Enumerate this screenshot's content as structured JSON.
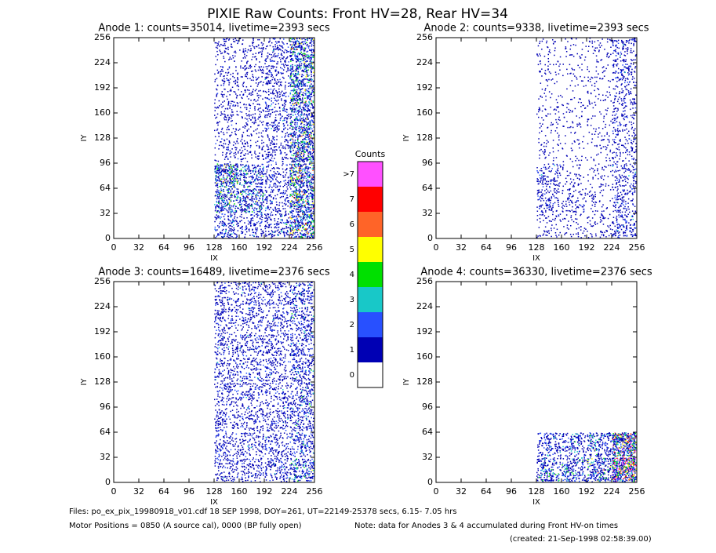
{
  "title": "PIXIE Raw Counts:  Front HV=28, Rear HV=34",
  "chart_data": [
    {
      "type": "heatmap",
      "title": "Anode 1: counts=35014, livetime=2393 secs",
      "x_label": "IX",
      "y_label": "IY",
      "xlim": [
        0,
        256
      ],
      "ylim": [
        0,
        256
      ],
      "xticks": [
        0,
        32,
        64,
        96,
        128,
        160,
        192,
        224,
        256
      ],
      "yticks": [
        0,
        32,
        64,
        96,
        128,
        160,
        192,
        224,
        256
      ],
      "xbins": [
        0,
        32,
        64,
        96,
        128,
        160,
        192,
        224,
        256
      ],
      "ybins": [
        0,
        32,
        64,
        96,
        128,
        160,
        192,
        224,
        256
      ],
      "values": [
        [
          0,
          0,
          0,
          0,
          2,
          1.5,
          2,
          4
        ],
        [
          0,
          0,
          0,
          0,
          3,
          3,
          1.5,
          4
        ],
        [
          0,
          0,
          0,
          0,
          4,
          2.5,
          1.5,
          4
        ],
        [
          0,
          0,
          0,
          0,
          1,
          1,
          1.5,
          4
        ],
        [
          0,
          0,
          0,
          0,
          1,
          1,
          1.5,
          3.5
        ],
        [
          0,
          0,
          0,
          0,
          1,
          1,
          1.5,
          3.5
        ],
        [
          0,
          0,
          0,
          0,
          1,
          1,
          1.5,
          3.5
        ],
        [
          0,
          0,
          0,
          0,
          1,
          1,
          1.5,
          3.5
        ]
      ]
    },
    {
      "type": "heatmap",
      "title": "Anode 2: counts=9338, livetime=2393 secs",
      "x_label": "IX",
      "y_label": "IY",
      "xlim": [
        0,
        256
      ],
      "ylim": [
        0,
        256
      ],
      "xticks": [
        0,
        32,
        64,
        96,
        128,
        160,
        192,
        224,
        256
      ],
      "yticks": [
        0,
        32,
        64,
        96,
        128,
        160,
        192,
        224,
        256
      ],
      "xbins": [
        0,
        32,
        64,
        96,
        128,
        160,
        192,
        224,
        256
      ],
      "ybins": [
        0,
        32,
        64,
        96,
        128,
        160,
        192,
        224,
        256
      ],
      "values": [
        [
          0,
          0,
          0,
          0,
          0.8,
          0.6,
          0.8,
          1.8
        ],
        [
          0,
          0,
          0,
          0,
          1.5,
          1.2,
          0.6,
          1.5
        ],
        [
          0,
          0,
          0,
          0,
          1.5,
          0.6,
          0.6,
          1.5
        ],
        [
          0,
          0,
          0,
          0,
          0.5,
          0.4,
          0.5,
          1.2
        ],
        [
          0,
          0,
          0,
          0,
          0.5,
          0.4,
          0.5,
          1.2
        ],
        [
          0,
          0,
          0,
          0,
          0.5,
          0.4,
          0.5,
          1.2
        ],
        [
          0,
          0,
          0,
          0,
          0.5,
          0.4,
          0.5,
          1.5
        ],
        [
          0,
          0,
          0,
          0,
          0.5,
          0.4,
          0.6,
          1.5
        ]
      ]
    },
    {
      "type": "heatmap",
      "title": "Anode 3: counts=16489, livetime=2376 secs",
      "x_label": "IX",
      "y_label": "IY",
      "xlim": [
        0,
        256
      ],
      "ylim": [
        0,
        256
      ],
      "xticks": [
        0,
        32,
        64,
        96,
        128,
        160,
        192,
        224,
        256
      ],
      "yticks": [
        0,
        32,
        64,
        96,
        128,
        160,
        192,
        224,
        256
      ],
      "xbins": [
        0,
        32,
        64,
        96,
        128,
        160,
        192,
        224,
        256
      ],
      "ybins": [
        0,
        32,
        64,
        96,
        128,
        160,
        192,
        224,
        256
      ],
      "values": [
        [
          0,
          0,
          0,
          0,
          1.5,
          1.5,
          1.8,
          2.5
        ],
        [
          0,
          0,
          0,
          0,
          1.5,
          1.5,
          1.5,
          2
        ],
        [
          0,
          0,
          0,
          0,
          1.5,
          1.5,
          1.5,
          2
        ],
        [
          0,
          0,
          0,
          0,
          1.5,
          1.5,
          1.5,
          2
        ],
        [
          0,
          0,
          0,
          0,
          1.5,
          1.5,
          1.5,
          2
        ],
        [
          0,
          0,
          0,
          0,
          1.5,
          1.5,
          1.5,
          2
        ],
        [
          0,
          0,
          0,
          0,
          1.5,
          1.5,
          1.5,
          2
        ],
        [
          0,
          0,
          0,
          0,
          1.5,
          1.5,
          1.5,
          2
        ]
      ]
    },
    {
      "type": "heatmap",
      "title": "Anode 4: counts=36330, livetime=2376 secs",
      "x_label": "IX",
      "y_label": "IY",
      "xlim": [
        0,
        256
      ],
      "ylim": [
        0,
        256
      ],
      "xticks": [
        0,
        32,
        64,
        96,
        128,
        160,
        192,
        224,
        256
      ],
      "yticks": [
        0,
        32,
        64,
        96,
        128,
        160,
        192,
        224,
        256
      ],
      "xbins": [
        0,
        32,
        64,
        96,
        128,
        160,
        192,
        224,
        256
      ],
      "ybins": [
        0,
        32,
        64,
        96,
        128,
        160,
        192,
        224,
        256
      ],
      "values": [
        [
          0,
          0,
          0,
          0,
          2.5,
          2.5,
          3,
          7
        ],
        [
          0,
          0,
          0,
          0,
          2,
          2,
          2.5,
          6
        ],
        [
          0,
          0,
          0,
          0,
          0,
          0,
          0,
          0
        ],
        [
          0,
          0,
          0,
          0,
          0,
          0,
          0,
          0
        ],
        [
          0,
          0,
          0,
          0,
          0,
          0,
          0,
          0
        ],
        [
          0,
          0,
          0,
          0,
          0,
          0,
          0,
          0
        ],
        [
          0,
          0,
          0,
          0,
          0,
          0,
          0,
          0
        ],
        [
          0,
          0,
          0,
          0,
          0,
          0,
          0,
          0
        ]
      ]
    }
  ],
  "colorbar": {
    "title": "Counts",
    "ticks": [
      0,
      1,
      2,
      3,
      4,
      5,
      6,
      7,
      {
        "value": 8,
        "label": ">7"
      }
    ],
    "colors": [
      "#ffffff",
      "#0000b4",
      "#2850ff",
      "#18c8c8",
      "#00e000",
      "#ffff00",
      "#ff6428",
      "#ff0000",
      "#ff50ff"
    ]
  },
  "footer": {
    "files": "Files: po_ex_pix_19980918_v01.cdf    18 SEP 1998, DOY=261, UT=22149-25378 secs,  6.15- 7.05 hrs",
    "motor": "Motor Positions = 0850 (A source cal), 0000 (BP fully open)",
    "note": "Note: data for Anodes 3 & 4 accumulated during Front HV-on times",
    "created": "(created: 21-Sep-1998 02:58:39.00)"
  }
}
